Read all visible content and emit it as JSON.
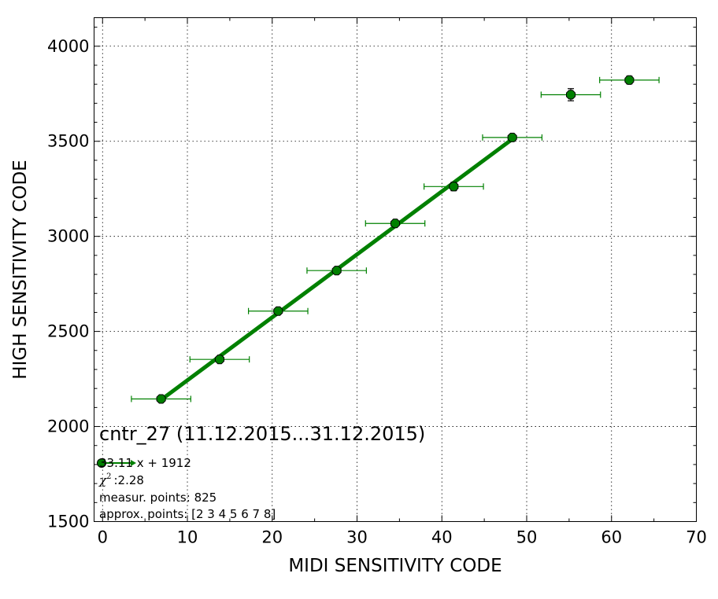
{
  "chart_data": {
    "type": "scatter",
    "xlabel": "MIDI SENSITIVITY CODE",
    "ylabel": "HIGH SENSITIVITY CODE",
    "xlim": [
      -1,
      70
    ],
    "ylim": [
      1500,
      4150
    ],
    "x_ticks": [
      "0",
      "10",
      "20",
      "30",
      "40",
      "50",
      "60",
      "70"
    ],
    "y_ticks": [
      "1500",
      "2000",
      "2500",
      "3000",
      "3500",
      "4000"
    ],
    "grid": true,
    "series": [
      {
        "color": "#008000",
        "marker": "octagon",
        "points": [
          {
            "x": 6.9,
            "y": 2145,
            "xerr": 3.5,
            "yerr": 8
          },
          {
            "x": 13.8,
            "y": 2353,
            "xerr": 3.5,
            "yerr": 8
          },
          {
            "x": 20.7,
            "y": 2607,
            "xerr": 3.5,
            "yerr": 10
          },
          {
            "x": 27.6,
            "y": 2820,
            "xerr": 3.5,
            "yerr": 10
          },
          {
            "x": 34.5,
            "y": 3068,
            "xerr": 3.5,
            "yerr": 12
          },
          {
            "x": 41.4,
            "y": 3262,
            "xerr": 3.5,
            "yerr": 22
          },
          {
            "x": 48.3,
            "y": 3520,
            "xerr": 3.5,
            "yerr": 15
          },
          {
            "x": 55.2,
            "y": 3745,
            "xerr": 3.5,
            "yerr": 32
          },
          {
            "x": 62.1,
            "y": 3822,
            "xerr": 3.5,
            "yerr": 20
          }
        ]
      }
    ],
    "fit_line": {
      "color": "#008000",
      "slope": 33.11,
      "intercept": 1912,
      "x_range": [
        6.9,
        48.3
      ]
    },
    "annotations": {
      "title": "cntr_27 (11.12.2015...31.12.2015)",
      "fit_label": "33.11 x + 1912",
      "chi_symbol": "χ",
      "chi_exponent": "2",
      "chi_value": ":2.28",
      "measur_points": "measur. points: 825",
      "approx_points": "approx. points: [2 3 4 5 6 7 8]"
    }
  }
}
